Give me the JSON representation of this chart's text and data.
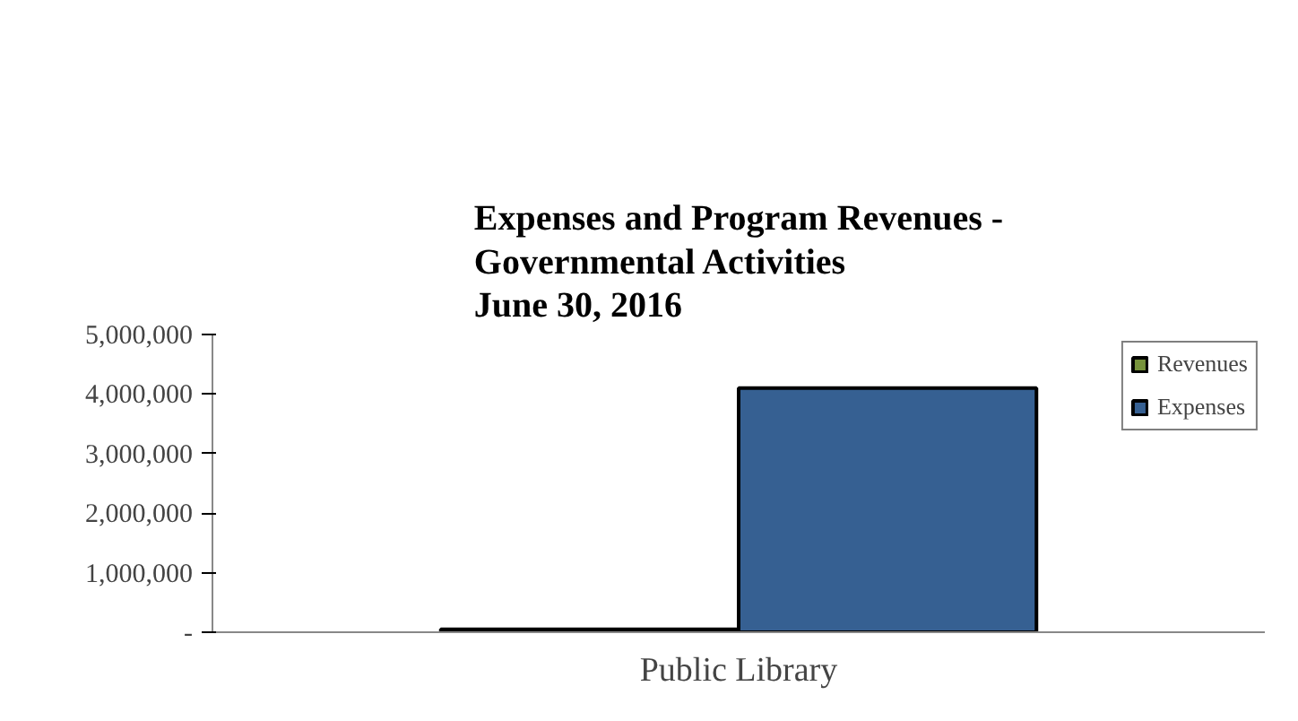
{
  "chart_data": {
    "type": "bar",
    "title": "Expenses and Program Revenues -\nGovernmental Activities\nJune 30, 2016",
    "categories": [
      "Public Library"
    ],
    "series": [
      {
        "name": "Revenues",
        "color": "#77933c",
        "values": [
          50000
        ]
      },
      {
        "name": "Expenses",
        "color": "#366092",
        "values": [
          4100000
        ]
      }
    ],
    "ylim": [
      0,
      5000000
    ],
    "yticks": [
      {
        "value": 0,
        "label": "-"
      },
      {
        "value": 1000000,
        "label": "1,000,000"
      },
      {
        "value": 2000000,
        "label": "2,000,000"
      },
      {
        "value": 3000000,
        "label": "3,000,000"
      },
      {
        "value": 4000000,
        "label": "4,000,000"
      },
      {
        "value": 5000000,
        "label": "5,000,000"
      }
    ],
    "grid": false,
    "legend": "top right"
  }
}
